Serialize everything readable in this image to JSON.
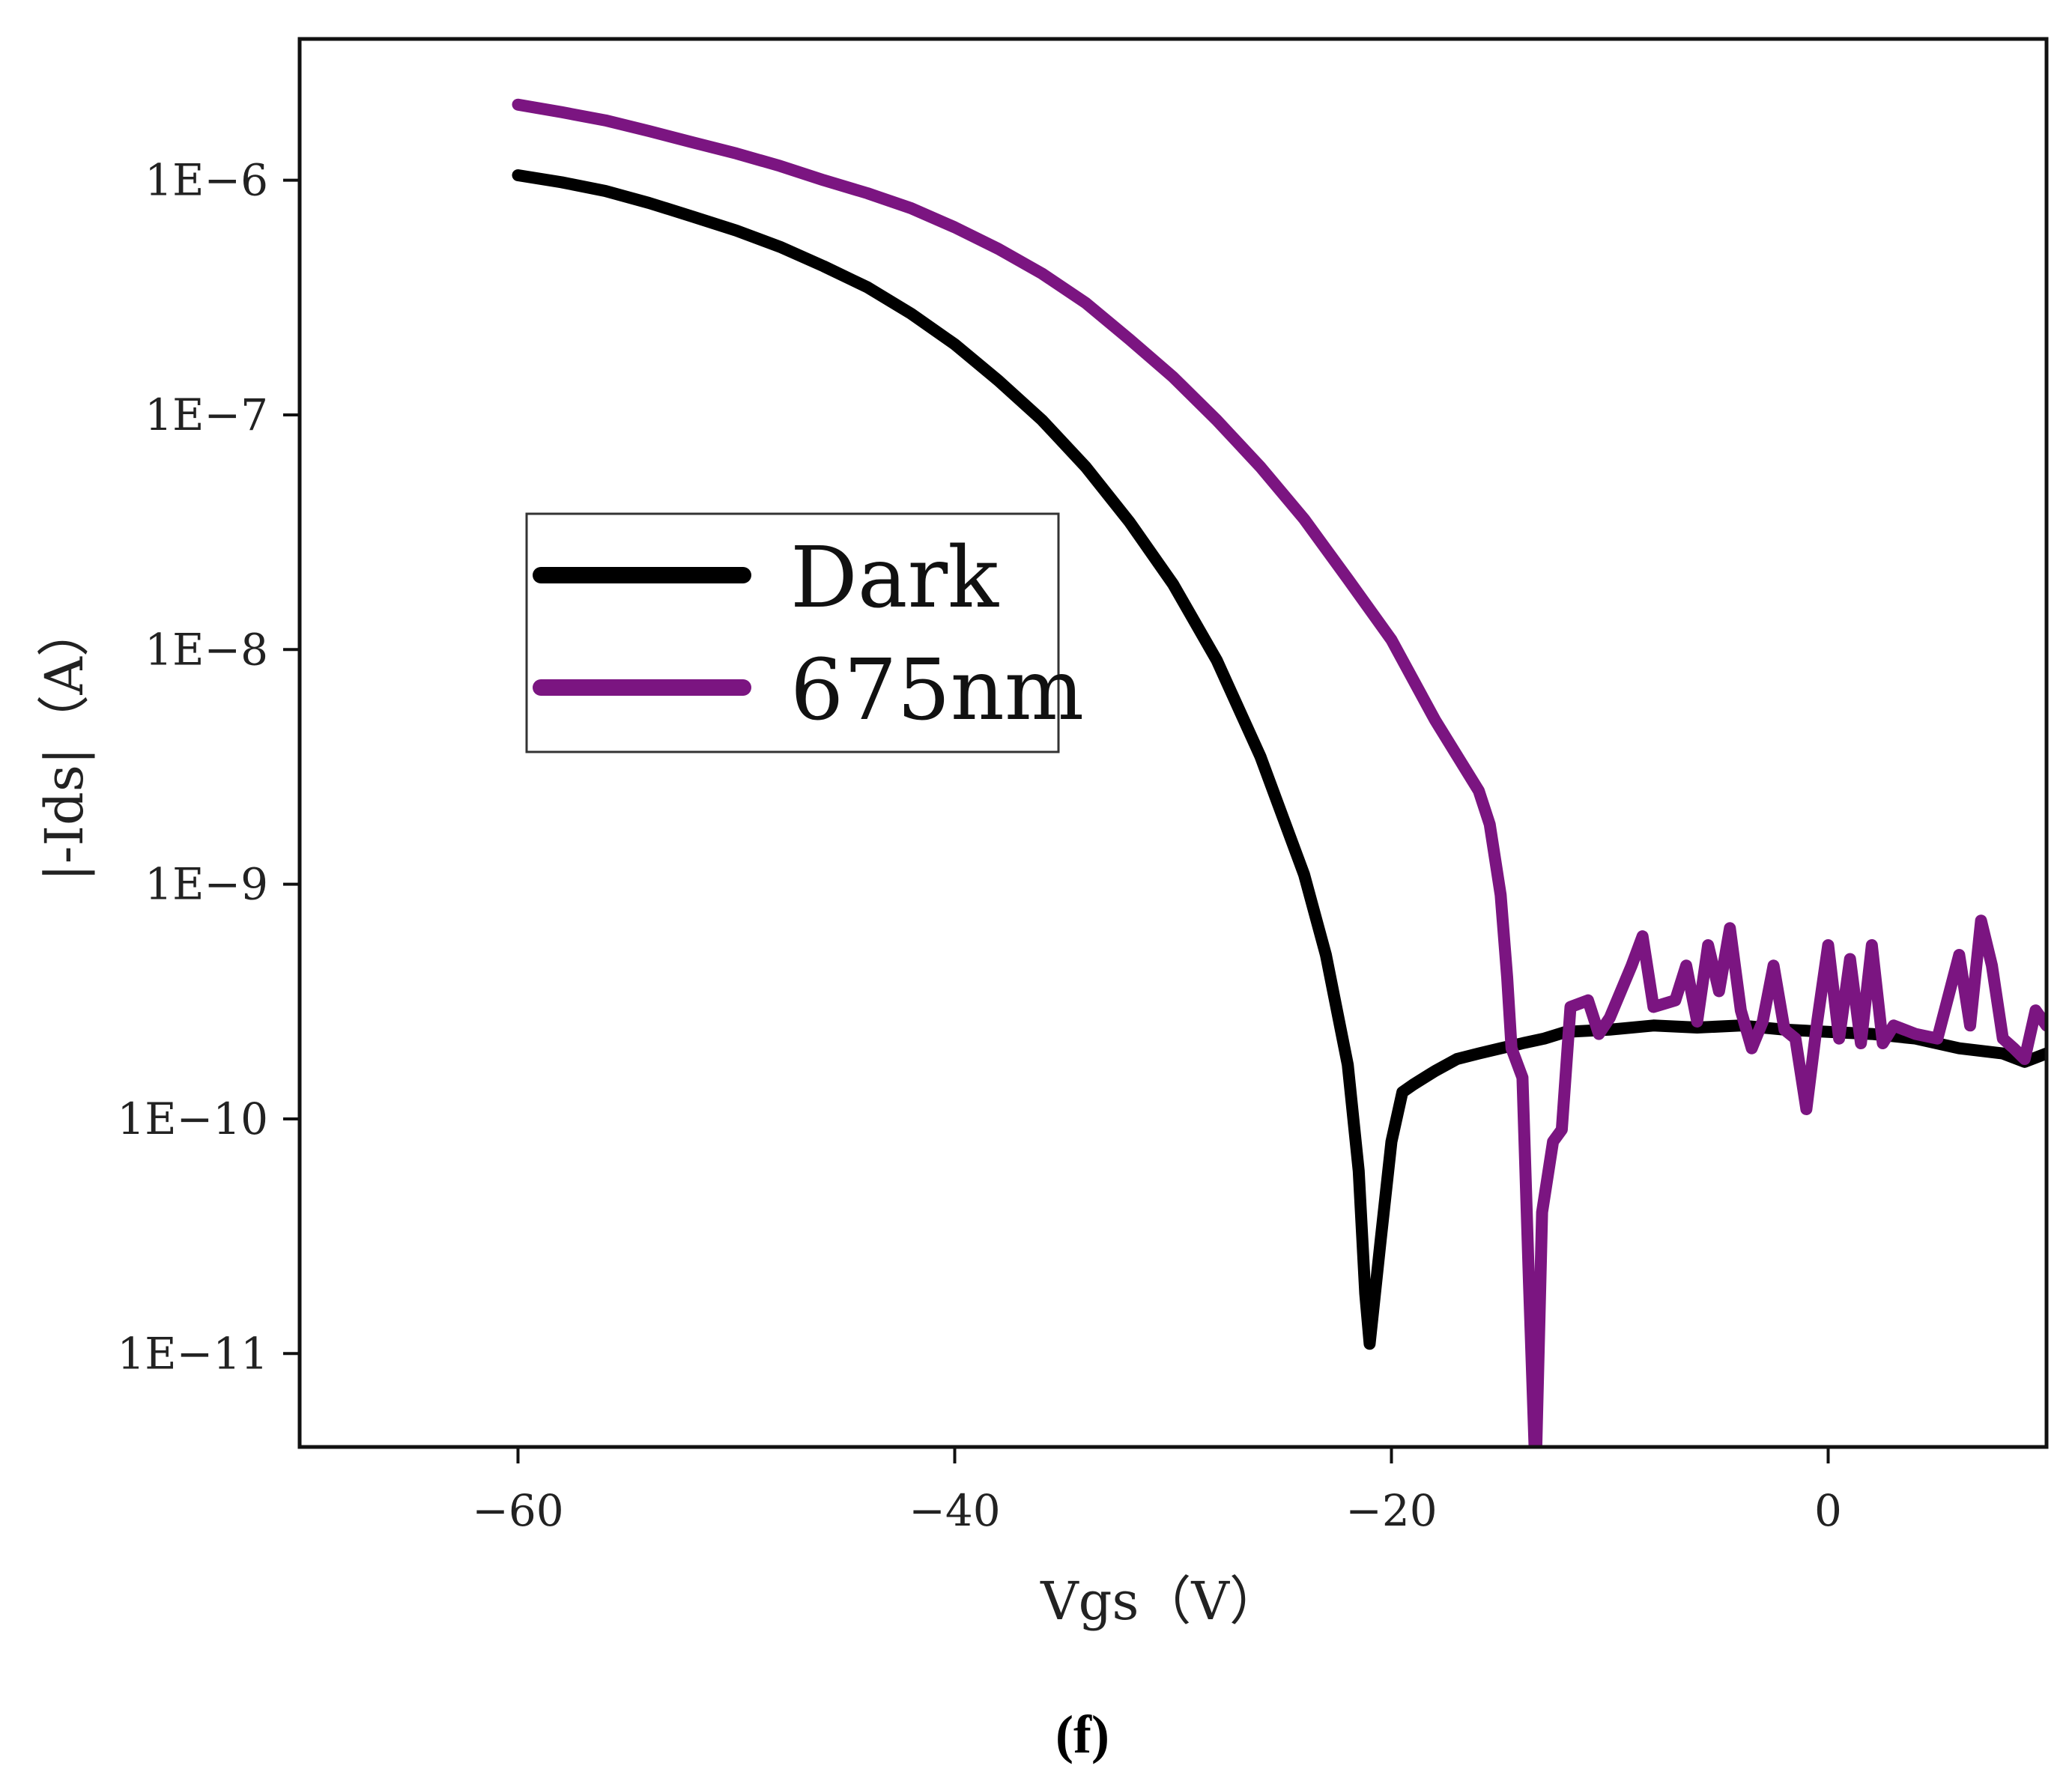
{
  "chart_data": {
    "type": "line",
    "xlabel": "Vgs（V）",
    "ylabel": "|-Ids|（A）",
    "panel_label": "(f)",
    "xlim": [
      -70,
      10
    ],
    "ylim": [
      4e-12,
      4e-06
    ],
    "yscale": "log",
    "x_ticks": [
      -60,
      -40,
      -20,
      0
    ],
    "x_tick_labels": [
      "−60",
      "−40",
      "−20",
      "0"
    ],
    "y_ticks": [
      1e-06,
      1e-07,
      1e-08,
      1e-09,
      1e-10,
      1e-11
    ],
    "y_tick_labels": [
      "1E−6",
      "1E−7",
      "1E−8",
      "1E−9",
      "1E−10",
      "1E−11"
    ],
    "grid": false,
    "legend_position": "center-left",
    "series": [
      {
        "name": "Dark",
        "color": "#000000",
        "points": [
          [
            -60,
            1.05e-06
          ],
          [
            -58,
            9.8e-07
          ],
          [
            -56,
            9e-07
          ],
          [
            -54,
            8e-07
          ],
          [
            -52,
            7e-07
          ],
          [
            -50,
            6.1e-07
          ],
          [
            -48,
            5.2e-07
          ],
          [
            -46,
            4.3e-07
          ],
          [
            -44,
            3.5e-07
          ],
          [
            -42,
            2.7e-07
          ],
          [
            -40,
            2e-07
          ],
          [
            -38,
            1.4e-07
          ],
          [
            -36,
            9.5e-08
          ],
          [
            -34,
            6e-08
          ],
          [
            -32,
            3.5e-08
          ],
          [
            -30,
            1.9e-08
          ],
          [
            -28,
            9e-09
          ],
          [
            -26,
            3.5e-09
          ],
          [
            -24,
            1.1e-09
          ],
          [
            -23,
            5e-10
          ],
          [
            -22,
            1.7e-10
          ],
          [
            -21.5,
            6e-11
          ],
          [
            -21.2,
            1.8e-11
          ],
          [
            -21,
            1.1e-11
          ],
          [
            -20.5,
            3e-11
          ],
          [
            -20,
            8e-11
          ],
          [
            -19.5,
            1.3e-10
          ],
          [
            -19,
            1.4e-10
          ],
          [
            -18,
            1.6e-10
          ],
          [
            -17,
            1.8e-10
          ],
          [
            -16,
            1.9e-10
          ],
          [
            -15,
            2e-10
          ],
          [
            -14,
            2.1e-10
          ],
          [
            -13,
            2.2e-10
          ],
          [
            -12,
            2.35e-10
          ],
          [
            -10,
            2.4e-10
          ],
          [
            -8,
            2.5e-10
          ],
          [
            -6,
            2.45e-10
          ],
          [
            -4,
            2.5e-10
          ],
          [
            -2,
            2.4e-10
          ],
          [
            0,
            2.35e-10
          ],
          [
            2,
            2.3e-10
          ],
          [
            4,
            2.2e-10
          ],
          [
            6,
            2e-10
          ],
          [
            8,
            1.9e-10
          ],
          [
            9,
            1.75e-10
          ],
          [
            10,
            1.9e-10
          ]
        ]
      },
      {
        "name": "675nm",
        "color": "#7b1581",
        "points": [
          [
            -60,
            2.1e-06
          ],
          [
            -58,
            1.95e-06
          ],
          [
            -56,
            1.8e-06
          ],
          [
            -54,
            1.62e-06
          ],
          [
            -52,
            1.45e-06
          ],
          [
            -50,
            1.3e-06
          ],
          [
            -48,
            1.15e-06
          ],
          [
            -46,
            1e-06
          ],
          [
            -44,
            8.8e-07
          ],
          [
            -42,
            7.6e-07
          ],
          [
            -40,
            6.3e-07
          ],
          [
            -38,
            5.1e-07
          ],
          [
            -36,
            4e-07
          ],
          [
            -34,
            3e-07
          ],
          [
            -32,
            2.1e-07
          ],
          [
            -30,
            1.45e-07
          ],
          [
            -28,
            9.5e-08
          ],
          [
            -26,
            6e-08
          ],
          [
            -24,
            3.6e-08
          ],
          [
            -22,
            2e-08
          ],
          [
            -20,
            1.1e-08
          ],
          [
            -18,
            5e-09
          ],
          [
            -16,
            2.5e-09
          ],
          [
            -15.5,
            1.8e-09
          ],
          [
            -15,
            9e-10
          ],
          [
            -14.7,
            4e-10
          ],
          [
            -14.5,
            2e-10
          ],
          [
            -14,
            1.5e-10
          ],
          [
            -13.7,
            2e-11
          ],
          [
            -13.4,
            3e-12
          ],
          [
            -13.1,
            4e-11
          ],
          [
            -12.6,
            8e-11
          ],
          [
            -12.2,
            9e-11
          ],
          [
            -11.8,
            3e-10
          ],
          [
            -11,
            3.2e-10
          ],
          [
            -10.5,
            2.3e-10
          ],
          [
            -10,
            2.7e-10
          ],
          [
            -9,
            4.5e-10
          ],
          [
            -8.5,
            6e-10
          ],
          [
            -8,
            3e-10
          ],
          [
            -7,
            3.2e-10
          ],
          [
            -6.5,
            4.5e-10
          ],
          [
            -6,
            2.6e-10
          ],
          [
            -5.5,
            5.5e-10
          ],
          [
            -5,
            3.5e-10
          ],
          [
            -4.5,
            6.5e-10
          ],
          [
            -4,
            2.9e-10
          ],
          [
            -3.5,
            2e-10
          ],
          [
            -3,
            2.6e-10
          ],
          [
            -2.5,
            4.5e-10
          ],
          [
            -2,
            2.4e-10
          ],
          [
            -1.5,
            2.2e-10
          ],
          [
            -1,
            1.1e-10
          ],
          [
            -0.5,
            2.6e-10
          ],
          [
            0,
            5.5e-10
          ],
          [
            0.5,
            2.2e-10
          ],
          [
            1,
            4.8e-10
          ],
          [
            1.5,
            2.1e-10
          ],
          [
            2,
            5.5e-10
          ],
          [
            2.5,
            2.1e-10
          ],
          [
            3,
            2.5e-10
          ],
          [
            4,
            2.3e-10
          ],
          [
            5,
            2.2e-10
          ],
          [
            6,
            5e-10
          ],
          [
            6.5,
            2.5e-10
          ],
          [
            7,
            7e-10
          ],
          [
            7.5,
            4.5e-10
          ],
          [
            8,
            2.2e-10
          ],
          [
            8.5,
            2e-10
          ],
          [
            9,
            1.8e-10
          ],
          [
            9.5,
            2.9e-10
          ],
          [
            10,
            2.5e-10
          ]
        ]
      }
    ]
  }
}
